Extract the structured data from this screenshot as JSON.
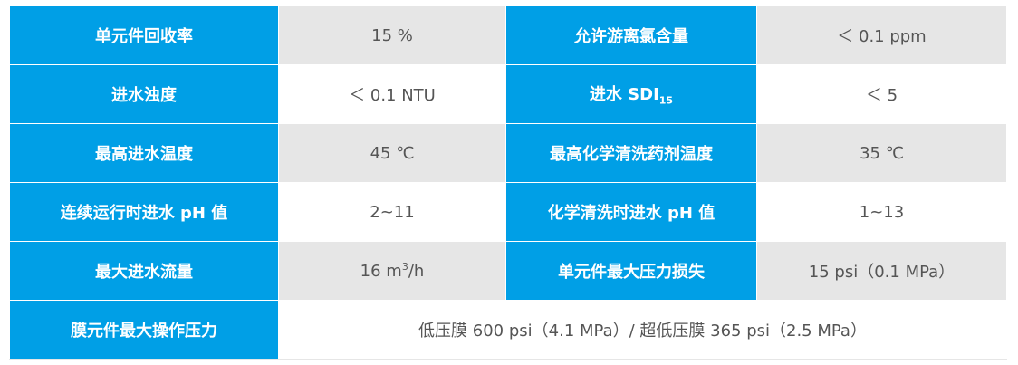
{
  "colors": {
    "label_bg": "#009fe6",
    "alt_row_bg": "#e6e6e6",
    "value_text": "#555555"
  },
  "rows": [
    {
      "label1": "单元件回收率",
      "value1": "15 %",
      "label2": "允许游离氯含量",
      "value2": "＜ 0.1 ppm"
    },
    {
      "label1": "进水浊度",
      "value1": "＜ 0.1 NTU",
      "label2_main": "进水 SDI",
      "label2_sub": "15",
      "value2": "＜ 5"
    },
    {
      "label1": "最高进水温度",
      "value1": "45 ℃",
      "label2": "最高化学清洗药剂温度",
      "value2": "35 ℃"
    },
    {
      "label1": "连续运行时进水 pH 值",
      "value1": "2~11",
      "label2": "化学清洗时进水 pH 值",
      "value2": "1~13"
    },
    {
      "label1": "最大进水流量",
      "value1_main": "16 m",
      "value1_sup": "3",
      "value1_tail": "/h",
      "label2": "单元件最大压力损失",
      "value2": "15 psi（0.1 MPa）"
    },
    {
      "label1": "膜元件最大操作压力",
      "value1": "低压膜 600 psi（4.1 MPa）/ 超低压膜 365 psi（2.5 MPa）"
    }
  ]
}
